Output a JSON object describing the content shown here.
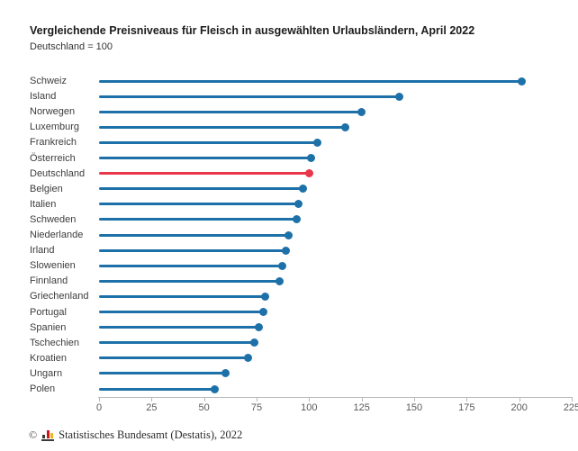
{
  "header": {
    "title": "Vergleichende Preisniveaus für Fleisch in ausgewählten Urlaubsländern, April 2022",
    "subtitle": "Deutschland = 100"
  },
  "chart_data": {
    "type": "bar",
    "variant": "horizontal-lollipop",
    "title": "Vergleichende Preisniveaus für Fleisch in ausgewählten Urlaubsländern, April 2022",
    "subtitle": "Deutschland = 100",
    "categories": [
      "Schweiz",
      "Island",
      "Norwegen",
      "Luxemburg",
      "Frankreich",
      "Österreich",
      "Deutschland",
      "Belgien",
      "Italien",
      "Schweden",
      "Niederlande",
      "Irland",
      "Slowenien",
      "Finnland",
      "Griechenland",
      "Portugal",
      "Spanien",
      "Tschechien",
      "Kroatien",
      "Ungarn",
      "Polen"
    ],
    "values": [
      201,
      143,
      125,
      117,
      104,
      101,
      100,
      97,
      95,
      94,
      90,
      89,
      87,
      86,
      79,
      78,
      76,
      74,
      71,
      60,
      55
    ],
    "highlight_category": "Deutschland",
    "series_color": "#1d71a8",
    "highlight_color": "#e8374a",
    "axis_color": "#b8b8b8",
    "xlim": [
      0,
      225
    ],
    "x_ticks": [
      0,
      25,
      50,
      75,
      100,
      125,
      150,
      175,
      200,
      225
    ],
    "grid": false,
    "legend": false,
    "xlabel": "",
    "ylabel": ""
  },
  "footer": {
    "copyright_symbol": "©",
    "icon": "destatis-bars-icon",
    "source": "Statistisches Bundesamt (Destatis), 2022"
  }
}
